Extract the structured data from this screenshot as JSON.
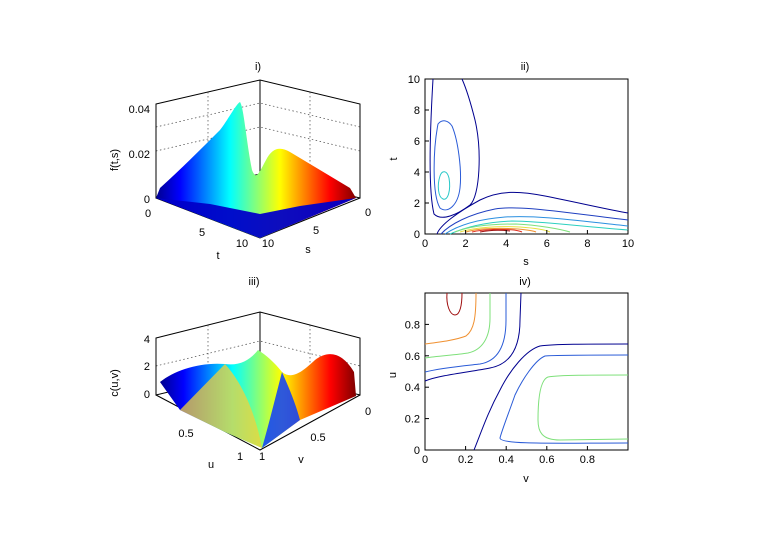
{
  "chart_data": [
    {
      "id": "i",
      "type": "surface",
      "title": "i)",
      "zlabel": "f(t,s)",
      "xlabel": "t",
      "ylabel": "s",
      "z_ticks": [
        "0",
        "0.02",
        "0.04"
      ],
      "t_ticks": [
        "0",
        "5",
        "10"
      ],
      "s_ticks": [
        "0",
        "5",
        "10"
      ],
      "zlim": [
        0,
        0.045
      ],
      "colormap": "jet"
    },
    {
      "id": "ii",
      "type": "contour",
      "title": "ii)",
      "xlabel": "s",
      "ylabel": "t",
      "x_ticks": [
        "0",
        "2",
        "4",
        "6",
        "8",
        "10"
      ],
      "y_ticks": [
        "0",
        "2",
        "4",
        "6",
        "8",
        "10"
      ],
      "xlim": [
        0,
        10
      ],
      "ylim": [
        0,
        10
      ]
    },
    {
      "id": "iii",
      "type": "surface",
      "title": "iii)",
      "zlabel": "c(u,v)",
      "xlabel": "u",
      "ylabel": "v",
      "z_ticks": [
        "0",
        "2",
        "4"
      ],
      "u_ticks": [
        "0.5",
        "1"
      ],
      "v_ticks": [
        "0",
        "0.5",
        "1"
      ],
      "zlim": [
        0,
        4
      ],
      "colormap": "jet"
    },
    {
      "id": "iv",
      "type": "contour",
      "title": "iv)",
      "xlabel": "v",
      "ylabel": "u",
      "x_ticks": [
        "0",
        "0.2",
        "0.4",
        "0.6",
        "0.8"
      ],
      "y_ticks": [
        "0",
        "0.2",
        "0.4",
        "0.6",
        "0.8"
      ],
      "xlim": [
        0,
        1
      ],
      "ylim": [
        0,
        1
      ]
    }
  ]
}
